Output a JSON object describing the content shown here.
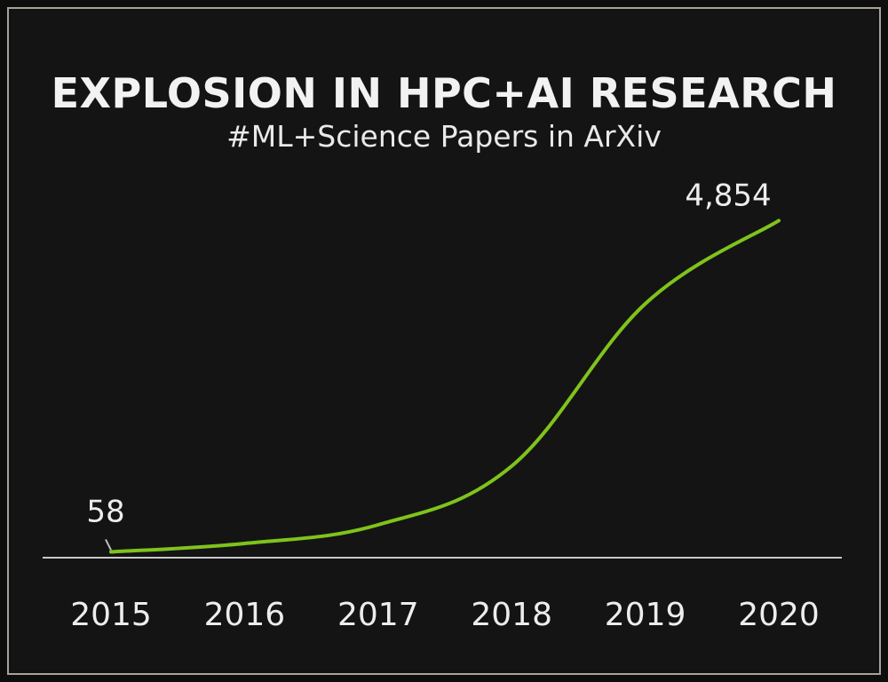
{
  "chart_data": {
    "type": "line",
    "title": "EXPLOSION IN HPC+AI RESEARCH",
    "subtitle": "#ML+Science Papers in ArXiv",
    "categories": [
      "2015",
      "2016",
      "2017",
      "2018",
      "2019",
      "2020"
    ],
    "x": [
      2015,
      2016,
      2017,
      2018,
      2019,
      2020
    ],
    "series": [
      {
        "values": [
          58,
          180,
          450,
          1300,
          3650,
          4854
        ]
      }
    ],
    "data_labels": [
      "58",
      "",
      "",
      "",
      "",
      "4,854"
    ],
    "ylim": [
      0,
      5400
    ],
    "grid": false,
    "legend": "none",
    "colors": {
      "line": "#7fc31c",
      "axis": "#c8c8c8",
      "text": "#ededed",
      "background": "#141414"
    }
  }
}
